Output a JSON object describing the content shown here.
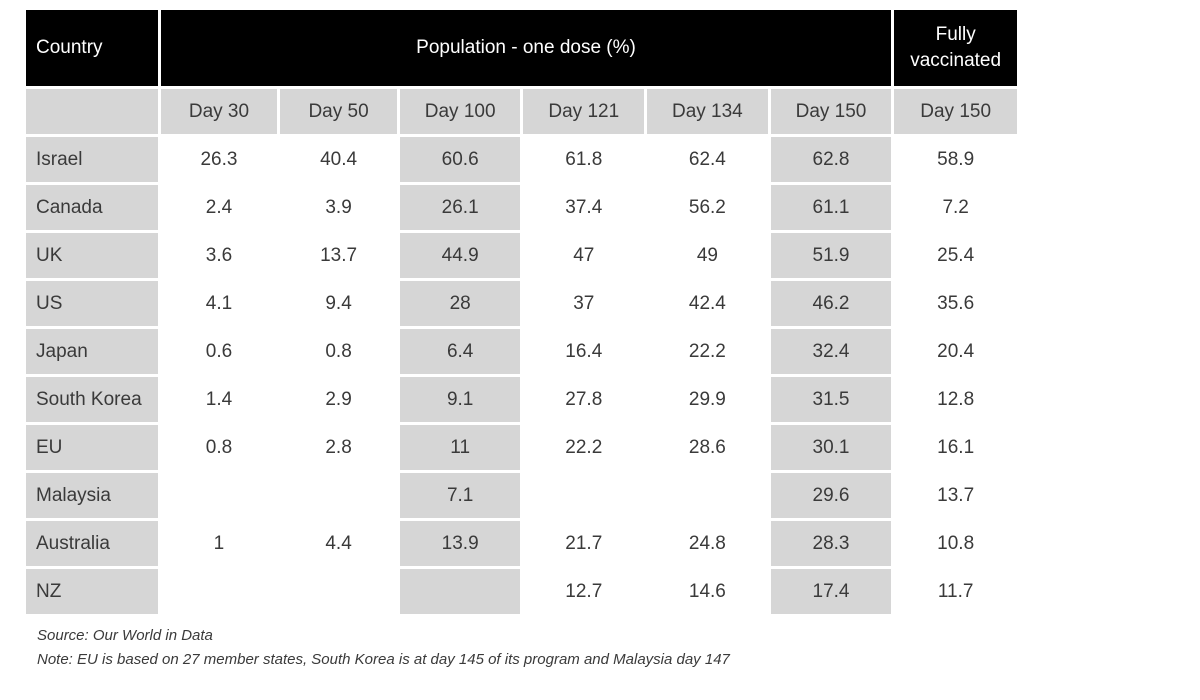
{
  "chart_data": {
    "type": "table",
    "header": {
      "country": "Country",
      "group": "Population - one dose (%)",
      "fully": "Fully vaccinated"
    },
    "subheaders": [
      "Day 30",
      "Day 50",
      "Day 100",
      "Day 121",
      "Day 134",
      "Day 150",
      "Day 150"
    ],
    "rows": [
      {
        "country": "Israel",
        "values": [
          "26.3",
          "40.4",
          "60.6",
          "61.8",
          "62.4",
          "62.8",
          "58.9"
        ]
      },
      {
        "country": "Canada",
        "values": [
          "2.4",
          "3.9",
          "26.1",
          "37.4",
          "56.2",
          "61.1",
          "7.2"
        ]
      },
      {
        "country": "UK",
        "values": [
          "3.6",
          "13.7",
          "44.9",
          "47",
          "49",
          "51.9",
          "25.4"
        ]
      },
      {
        "country": "US",
        "values": [
          "4.1",
          "9.4",
          "28",
          "37",
          "42.4",
          "46.2",
          "35.6"
        ]
      },
      {
        "country": "Japan",
        "values": [
          "0.6",
          "0.8",
          "6.4",
          "16.4",
          "22.2",
          "32.4",
          "20.4"
        ]
      },
      {
        "country": "South Korea",
        "values": [
          "1.4",
          "2.9",
          "9.1",
          "27.8",
          "29.9",
          "31.5",
          "12.8"
        ]
      },
      {
        "country": "EU",
        "values": [
          "0.8",
          "2.8",
          "11",
          "22.2",
          "28.6",
          "30.1",
          "16.1"
        ]
      },
      {
        "country": "Malaysia",
        "values": [
          "",
          "",
          "7.1",
          "",
          "",
          "29.6",
          "13.7"
        ]
      },
      {
        "country": "Australia",
        "values": [
          "1",
          "4.4",
          "13.9",
          "21.7",
          "24.8",
          "28.3",
          "10.8"
        ]
      },
      {
        "country": "NZ",
        "values": [
          "",
          "",
          "",
          "12.7",
          "14.6",
          "17.4",
          "11.7"
        ]
      }
    ]
  },
  "footnotes": {
    "source": "Source: Our World in Data",
    "note": "Note: EU is based on 27 member states, South Korea is at day 145 of its program and Malaysia day 147"
  },
  "colors": {
    "header_bg": "#000000",
    "header_text": "#ffffff",
    "shaded_cell": "#d6d6d6"
  }
}
